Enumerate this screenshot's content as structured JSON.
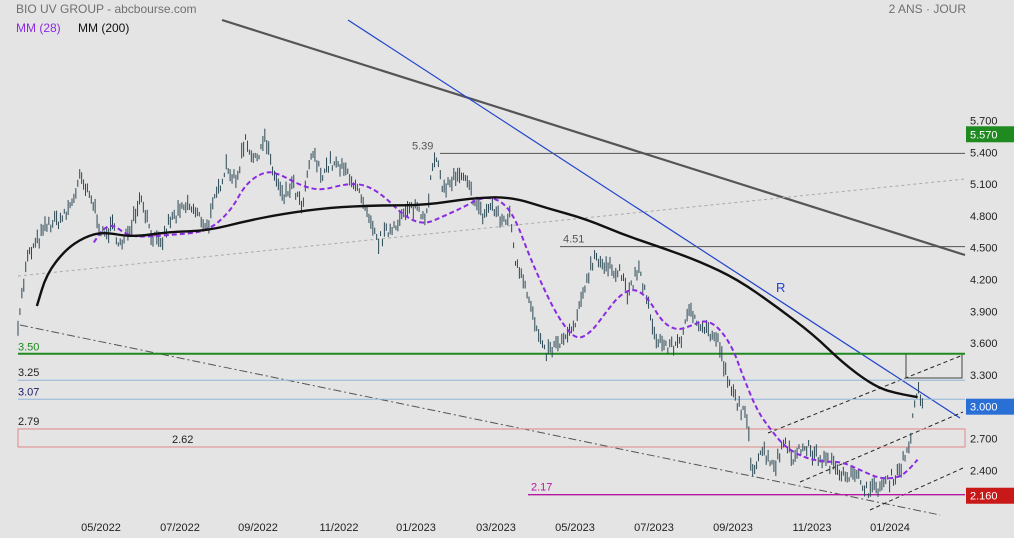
{
  "header": {
    "title": "BIO UV GROUP - abcbourse.com",
    "period": "2 ANS · JOUR"
  },
  "legend": [
    {
      "label": "MM (28)",
      "color": "#8a2be2"
    },
    {
      "label": "MM (200)",
      "color": "#111111"
    }
  ],
  "chart_data": {
    "type": "line",
    "subtype": "price-bars",
    "y_ticks": [
      "5.700",
      "5.400",
      "5.100",
      "4.800",
      "4.500",
      "4.200",
      "3.900",
      "3.600",
      "3.300",
      "3.000",
      "2.700",
      "2.400"
    ],
    "ylim": [
      2.05,
      5.9
    ],
    "x_ticks": [
      "05/2022",
      "07/2022",
      "09/2022",
      "11/2022",
      "01/2023",
      "03/2023",
      "05/2023",
      "07/2023",
      "09/2023",
      "11/2023",
      "01/2024"
    ],
    "grid": false,
    "badges": [
      {
        "label": "5.570",
        "value": 5.57,
        "color": "#1f8a1f"
      },
      {
        "label": "3.000",
        "value": 3.0,
        "color": "#2a6fd6"
      },
      {
        "label": "2.160",
        "value": 2.16,
        "color": "#c91818"
      }
    ],
    "levels": [
      {
        "label": "5.39",
        "value": 5.39,
        "color": "#555555"
      },
      {
        "label": "4.51",
        "value": 4.51,
        "color": "#555555"
      },
      {
        "label": "3.50",
        "value": 3.5,
        "color": "#1f8a1f"
      },
      {
        "label": "3.25",
        "value": 3.25,
        "color": "#8fb6d9"
      },
      {
        "label": "3.07",
        "value": 3.07,
        "color": "#8fb6d9"
      },
      {
        "label": "2.79",
        "value": 2.79,
        "color": "#e08a8a"
      },
      {
        "label": "2.62",
        "value": 2.62,
        "color": "#e08a8a"
      },
      {
        "label": "2.17",
        "value": 2.17,
        "color": "#b5179e"
      }
    ],
    "annotations": [
      {
        "label": "R",
        "color": "#2244cc"
      }
    ],
    "series": [
      {
        "name": "MM (28)",
        "color": "#8a2be2",
        "style": "dashed",
        "points": [
          [
            0.08,
            4.55
          ],
          [
            0.09,
            4.68
          ],
          [
            0.1,
            4.72
          ],
          [
            0.115,
            4.62
          ],
          [
            0.13,
            4.6
          ],
          [
            0.16,
            4.62
          ],
          [
            0.2,
            4.65
          ],
          [
            0.225,
            4.85
          ],
          [
            0.24,
            5.1
          ],
          [
            0.26,
            5.22
          ],
          [
            0.275,
            5.2
          ],
          [
            0.3,
            5.08
          ],
          [
            0.32,
            5.04
          ],
          [
            0.345,
            5.1
          ],
          [
            0.365,
            5.1
          ],
          [
            0.385,
            5.0
          ],
          [
            0.41,
            4.78
          ],
          [
            0.43,
            4.72
          ],
          [
            0.45,
            4.8
          ],
          [
            0.47,
            4.88
          ],
          [
            0.49,
            4.98
          ],
          [
            0.51,
            4.95
          ],
          [
            0.525,
            4.78
          ],
          [
            0.54,
            4.42
          ],
          [
            0.56,
            4.02
          ],
          [
            0.575,
            3.78
          ],
          [
            0.59,
            3.63
          ],
          [
            0.605,
            3.7
          ],
          [
            0.62,
            3.88
          ],
          [
            0.635,
            4.05
          ],
          [
            0.65,
            4.12
          ],
          [
            0.665,
            4.03
          ],
          [
            0.68,
            3.8
          ],
          [
            0.695,
            3.72
          ],
          [
            0.71,
            3.76
          ],
          [
            0.725,
            3.82
          ],
          [
            0.74,
            3.75
          ],
          [
            0.755,
            3.55
          ],
          [
            0.765,
            3.3
          ],
          [
            0.78,
            2.97
          ],
          [
            0.795,
            2.78
          ],
          [
            0.81,
            2.62
          ],
          [
            0.83,
            2.52
          ],
          [
            0.85,
            2.48
          ],
          [
            0.87,
            2.48
          ],
          [
            0.89,
            2.4
          ],
          [
            0.91,
            2.32
          ],
          [
            0.93,
            2.33
          ],
          [
            0.94,
            2.4
          ],
          [
            0.95,
            2.5
          ]
        ]
      },
      {
        "name": "MM (200)",
        "color": "#111111",
        "style": "solid",
        "points": [
          [
            0.02,
            3.95
          ],
          [
            0.03,
            4.25
          ],
          [
            0.05,
            4.48
          ],
          [
            0.07,
            4.6
          ],
          [
            0.09,
            4.65
          ],
          [
            0.12,
            4.6
          ],
          [
            0.16,
            4.65
          ],
          [
            0.2,
            4.66
          ],
          [
            0.24,
            4.75
          ],
          [
            0.28,
            4.82
          ],
          [
            0.33,
            4.88
          ],
          [
            0.38,
            4.9
          ],
          [
            0.43,
            4.9
          ],
          [
            0.48,
            4.97
          ],
          [
            0.52,
            4.98
          ],
          [
            0.56,
            4.87
          ],
          [
            0.6,
            4.77
          ],
          [
            0.64,
            4.62
          ],
          [
            0.68,
            4.5
          ],
          [
            0.72,
            4.37
          ],
          [
            0.76,
            4.2
          ],
          [
            0.8,
            3.95
          ],
          [
            0.84,
            3.68
          ],
          [
            0.87,
            3.42
          ],
          [
            0.9,
            3.22
          ],
          [
            0.92,
            3.14
          ],
          [
            0.95,
            3.09
          ]
        ]
      }
    ],
    "price_path": [
      [
        0.0,
        3.8
      ],
      [
        0.01,
        4.4
      ],
      [
        0.03,
        4.7
      ],
      [
        0.05,
        4.8
      ],
      [
        0.06,
        5.0
      ],
      [
        0.065,
        5.15
      ],
      [
        0.08,
        4.9
      ],
      [
        0.09,
        4.6
      ],
      [
        0.1,
        4.7
      ],
      [
        0.11,
        4.5
      ],
      [
        0.13,
        5.0
      ],
      [
        0.14,
        4.65
      ],
      [
        0.15,
        4.5
      ],
      [
        0.16,
        4.75
      ],
      [
        0.18,
        4.9
      ],
      [
        0.2,
        4.7
      ],
      [
        0.21,
        5.0
      ],
      [
        0.22,
        5.3
      ],
      [
        0.23,
        5.1
      ],
      [
        0.24,
        5.55
      ],
      [
        0.25,
        5.3
      ],
      [
        0.26,
        5.55
      ],
      [
        0.27,
        5.2
      ],
      [
        0.28,
        4.95
      ],
      [
        0.29,
        5.1
      ],
      [
        0.3,
        4.85
      ],
      [
        0.31,
        5.4
      ],
      [
        0.32,
        5.2
      ],
      [
        0.33,
        5.3
      ],
      [
        0.35,
        5.2
      ],
      [
        0.36,
        5.0
      ],
      [
        0.37,
        4.75
      ],
      [
        0.38,
        4.55
      ],
      [
        0.4,
        4.75
      ],
      [
        0.42,
        4.9
      ],
      [
        0.43,
        4.8
      ],
      [
        0.44,
        5.35
      ],
      [
        0.45,
        5.05
      ],
      [
        0.46,
        5.15
      ],
      [
        0.47,
        5.15
      ],
      [
        0.48,
        5.0
      ],
      [
        0.49,
        4.8
      ],
      [
        0.5,
        4.9
      ],
      [
        0.51,
        4.75
      ],
      [
        0.52,
        4.8
      ],
      [
        0.525,
        4.4
      ],
      [
        0.535,
        4.2
      ],
      [
        0.545,
        3.8
      ],
      [
        0.555,
        3.5
      ],
      [
        0.565,
        3.55
      ],
      [
        0.58,
        3.65
      ],
      [
        0.59,
        3.8
      ],
      [
        0.6,
        4.2
      ],
      [
        0.61,
        4.45
      ],
      [
        0.62,
        4.3
      ],
      [
        0.635,
        4.3
      ],
      [
        0.645,
        4.05
      ],
      [
        0.655,
        4.3
      ],
      [
        0.665,
        4.0
      ],
      [
        0.67,
        3.7
      ],
      [
        0.68,
        3.6
      ],
      [
        0.69,
        3.55
      ],
      [
        0.7,
        3.65
      ],
      [
        0.71,
        3.9
      ],
      [
        0.72,
        3.8
      ],
      [
        0.73,
        3.7
      ],
      [
        0.74,
        3.6
      ],
      [
        0.745,
        3.4
      ],
      [
        0.75,
        3.2
      ],
      [
        0.76,
        3.05
      ],
      [
        0.77,
        2.85
      ],
      [
        0.775,
        2.4
      ],
      [
        0.785,
        2.6
      ],
      [
        0.8,
        2.45
      ],
      [
        0.81,
        2.7
      ],
      [
        0.82,
        2.5
      ],
      [
        0.83,
        2.65
      ],
      [
        0.84,
        2.55
      ],
      [
        0.85,
        2.5
      ],
      [
        0.86,
        2.45
      ],
      [
        0.87,
        2.4
      ],
      [
        0.88,
        2.35
      ],
      [
        0.89,
        2.3
      ],
      [
        0.9,
        2.2
      ],
      [
        0.91,
        2.25
      ],
      [
        0.92,
        2.3
      ],
      [
        0.93,
        2.4
      ],
      [
        0.94,
        2.6
      ],
      [
        0.95,
        3.15
      ],
      [
        0.955,
        3.05
      ]
    ]
  }
}
